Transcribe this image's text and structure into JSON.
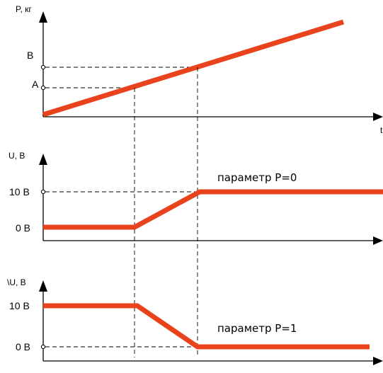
{
  "top_graph": {
    "y_axis_label": "P, кг",
    "x_axis_label": "t",
    "marker_a": "A",
    "marker_b": "B"
  },
  "middle_graph": {
    "y_axis_label": "U, B",
    "tick_high": "10 B",
    "tick_low": "0 B",
    "annotation": "параметр P=0"
  },
  "bottom_graph": {
    "y_axis_label": "\\U, B",
    "tick_high": "10 B",
    "tick_low": "0 B",
    "annotation": "параметр P=1"
  },
  "colors": {
    "signal_line": "#e8431c",
    "axis": "#000000",
    "dashed_guides": "#000000"
  }
}
